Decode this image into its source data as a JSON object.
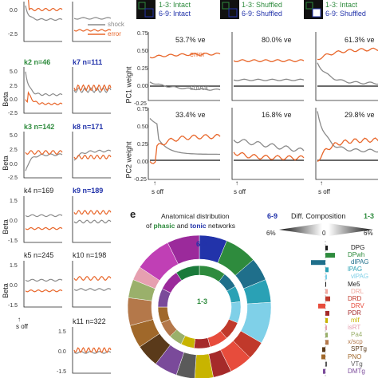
{
  "left_panels": {
    "k_labels": [
      {
        "text": "k2 n=46",
        "color": "green"
      },
      {
        "text": "k7 n=111",
        "color": "blue"
      },
      {
        "text": "k3 n=142",
        "color": "green"
      },
      {
        "text": "k8 n=171",
        "color": "blue"
      },
      {
        "text": "k4 n=169",
        "color": "black"
      },
      {
        "text": "k9 n=189",
        "color": "blue"
      },
      {
        "text": "k5 n=245",
        "color": "black"
      },
      {
        "text": "k10 n=198",
        "color": "black"
      },
      {
        "text": "k11 n=322",
        "color": "black"
      }
    ],
    "ylabel": "Beta",
    "yticks_upper": [
      "5.0",
      "2.5",
      "0.0",
      "-2.5"
    ],
    "yticks_lower": [
      "1.5",
      "0.0",
      "-1.5"
    ],
    "xtick": "s off",
    "legend": {
      "shock": "shock",
      "error": "error"
    }
  },
  "pc_panels": {
    "conditions": [
      {
        "line1": "1-3: Intact",
        "line2": "6-9: Intact"
      },
      {
        "line1": "1-3: Shuffled",
        "line2": "6-9: Shuffled"
      },
      {
        "line1": "1-3: Intact",
        "line2": "6-9: Shuffled"
      }
    ],
    "pc1_ve": [
      "53.7% ve",
      "80.0% ve",
      "61.3% ve"
    ],
    "pc2_ve": [
      "33.4% ve",
      "16.8% ve",
      "29.8% ve"
    ],
    "pc1_ylabel": "PC1 weight",
    "pc2_ylabel": "PC2 weight",
    "yticks": [
      "0.75",
      "0.50",
      "0.25",
      "0.00",
      "-0.25"
    ],
    "series_labels": {
      "error": "error",
      "shock": "shock"
    },
    "xtick": "s off"
  },
  "panel_e": {
    "letter": "e",
    "title_line1": "Anatomical distribution",
    "title_of": "of",
    "title_phasic": "phasic",
    "title_and": "and",
    "title_tonic": "tonic",
    "title_networks": "networks",
    "outer_label": "6-9",
    "inner_label": "1-3",
    "diff_title": "Diff. Composition",
    "diff_left": "6-9",
    "diff_right": "1-3",
    "scale_left": "6%",
    "scale_mid": "0",
    "scale_right": "6%",
    "regions": [
      {
        "name": "DPG",
        "color": "#1a1a1a"
      },
      {
        "name": "DPwh",
        "color": "#2e8b3d"
      },
      {
        "name": "dlPAG",
        "color": "#1f6f8b"
      },
      {
        "name": "lPAG",
        "color": "#2aa1b5"
      },
      {
        "name": "vlPAG",
        "color": "#7fd0e8"
      },
      {
        "name": "Me5",
        "color": "#1a1a1a"
      },
      {
        "name": "DRL",
        "color": "#f0a9a0"
      },
      {
        "name": "DRD",
        "color": "#c0392b"
      },
      {
        "name": "DRV",
        "color": "#e74c3c"
      },
      {
        "name": "PDR",
        "color": "#a52a2a"
      },
      {
        "name": "mlf",
        "color": "#c8b400"
      },
      {
        "name": "isRT",
        "color": "#e6a0b0"
      },
      {
        "name": "Pa4",
        "color": "#9ab06b"
      },
      {
        "name": "x/scp",
        "color": "#b4784a"
      },
      {
        "name": "SPTg",
        "color": "#5a3a1a"
      },
      {
        "name": "PNO",
        "color": "#a0682a"
      },
      {
        "name": "VTg",
        "color": "#5a5a5a"
      },
      {
        "name": "DMTg",
        "color": "#7a4a9a"
      }
    ]
  },
  "colors": {
    "error": "#e8662a",
    "shock": "#8a8a8a",
    "phasic_green": "#2e8b3d",
    "tonic_blue": "#2233aa"
  }
}
